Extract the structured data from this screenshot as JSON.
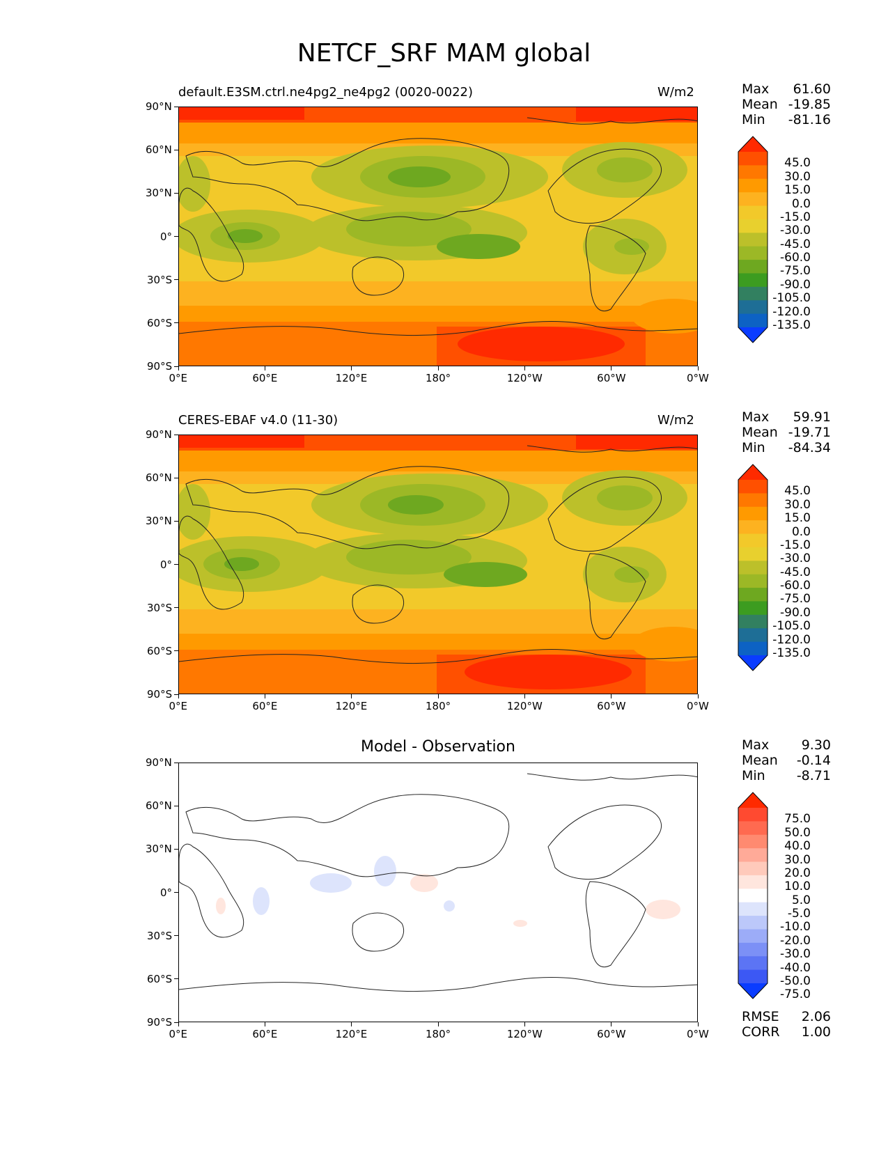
{
  "figure_title": "NETCF_SRF MAM global",
  "panels": [
    {
      "title": "default.E3SM.ctrl.ne4pg2_ne4pg2 (0020-0022)",
      "units": "W/m2",
      "stats": {
        "max_label": "Max",
        "max": "61.60",
        "mean_label": "Mean",
        "mean": "-19.85",
        "min_label": "Min",
        "min": "-81.16"
      }
    },
    {
      "title": "CERES-EBAF v4.0 (11-30)",
      "units": "W/m2",
      "stats": {
        "max_label": "Max",
        "max": "59.91",
        "mean_label": "Mean",
        "mean": "-19.71",
        "min_label": "Min",
        "min": "-84.34"
      }
    },
    {
      "title": "Model - Observation",
      "units": "",
      "stats": {
        "max_label": "Max",
        "max": "9.30",
        "mean_label": "Mean",
        "mean": "-0.14",
        "min_label": "Min",
        "min": "-8.71"
      },
      "metrics": {
        "rmse_label": "RMSE",
        "rmse": "2.06",
        "corr_label": "CORR",
        "corr": "1.00"
      }
    }
  ],
  "x_ticks": [
    "0°E",
    "60°E",
    "120°E",
    "180°",
    "120°W",
    "60°W",
    "0°W"
  ],
  "y_ticks": [
    "90°N",
    "60°N",
    "30°N",
    "0°",
    "30°S",
    "60°S",
    "90°S"
  ],
  "colorbar_field": {
    "labels": [
      "45.0",
      "30.0",
      "15.0",
      "0.0",
      "-15.0",
      "-30.0",
      "-45.0",
      "-60.0",
      "-75.0",
      "-90.0",
      "-105.0",
      "-120.0",
      "-135.0"
    ],
    "colors": [
      "#ff2a00",
      "#ff5000",
      "#ff7800",
      "#ff9a00",
      "#fdb220",
      "#f2c92a",
      "#e8d02e",
      "#bcc02a",
      "#9cb826",
      "#6ea820",
      "#3c9c20",
      "#328060",
      "#1e6e96",
      "#0d62c4",
      "#0a3cff"
    ]
  },
  "colorbar_diff": {
    "labels": [
      "75.0",
      "50.0",
      "40.0",
      "30.0",
      "20.0",
      "10.0",
      "5.0",
      "-5.0",
      "-10.0",
      "-20.0",
      "-30.0",
      "-40.0",
      "-50.0",
      "-75.0"
    ],
    "colors": [
      "#ff2a00",
      "#ff4a30",
      "#ff6a50",
      "#ff8a70",
      "#ffaa98",
      "#ffcabb",
      "#ffe6de",
      "#ffffff",
      "#dde4fc",
      "#bcc8fa",
      "#9cacf8",
      "#7c90f6",
      "#5c74f4",
      "#3c58f4",
      "#0a3cff"
    ]
  }
}
